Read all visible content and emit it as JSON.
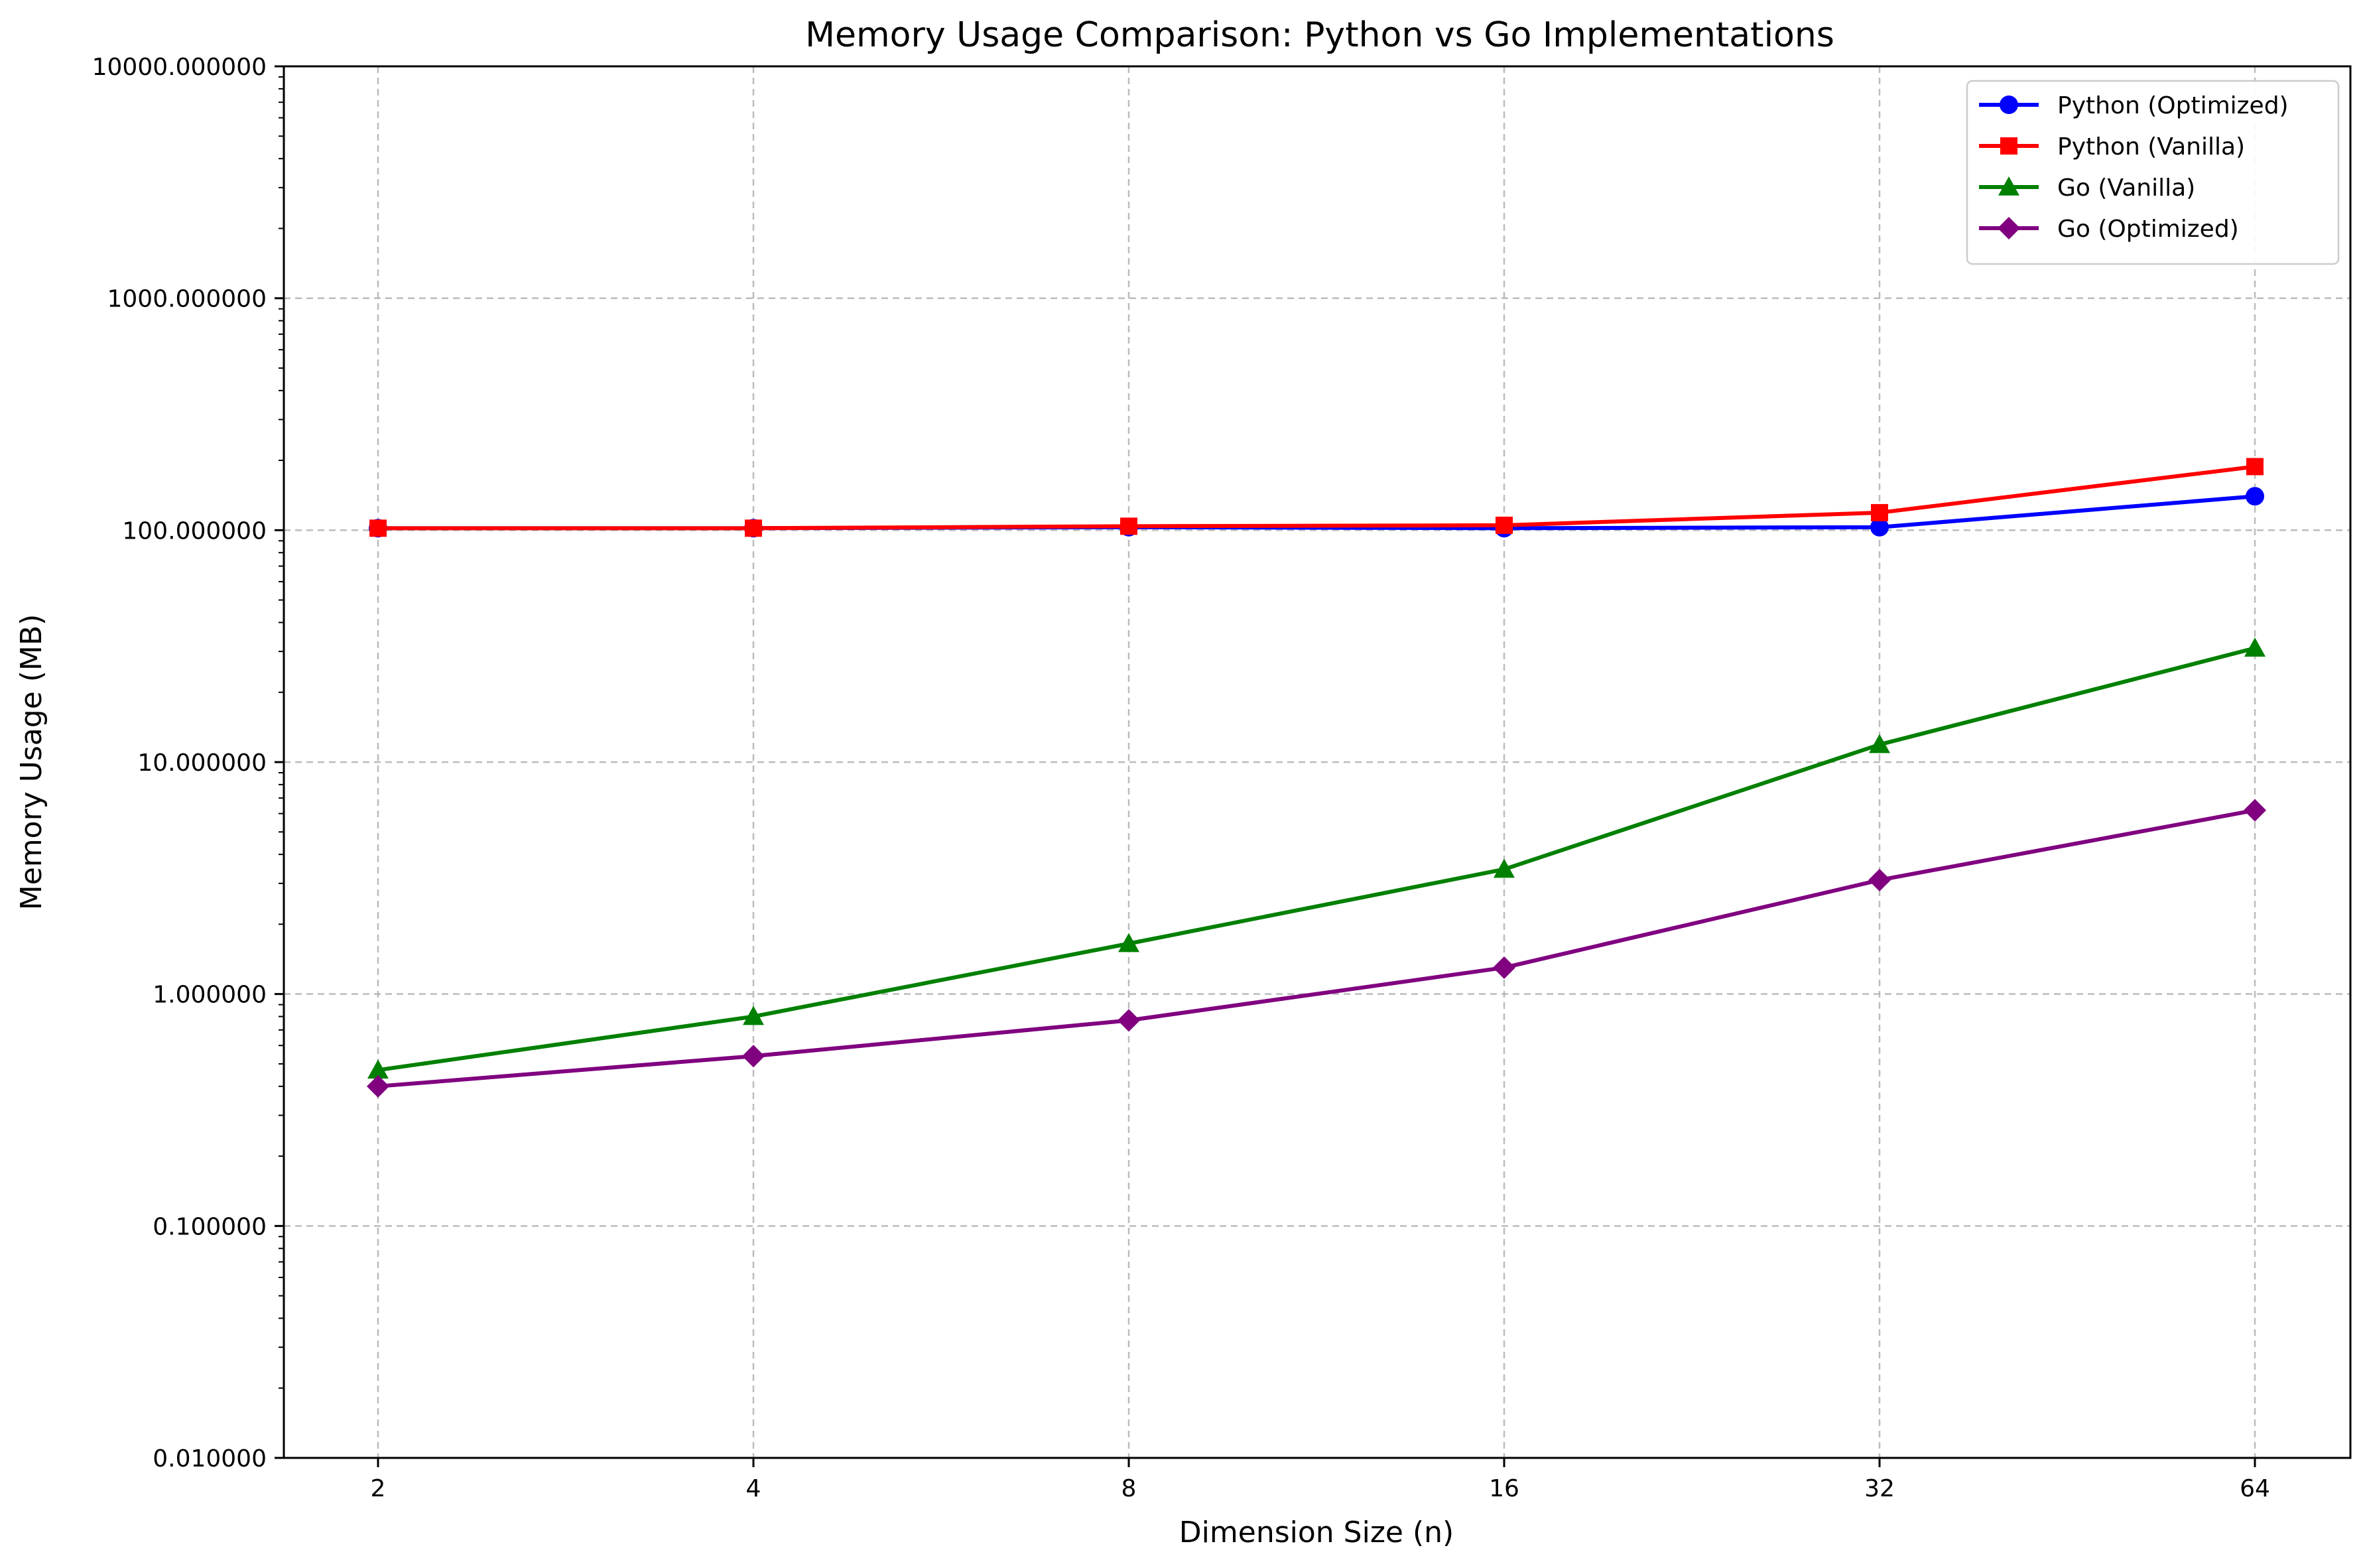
{
  "chart_data": {
    "type": "line",
    "title": "Memory Usage Comparison: Python vs Go Implementations",
    "xlabel": "Dimension Size (n)",
    "ylabel": "Memory Usage (MB)",
    "x_scale": "log2",
    "y_scale": "log",
    "x": [
      2,
      4,
      8,
      16,
      32,
      64
    ],
    "x_tick_labels": [
      "2",
      "4",
      "8",
      "16",
      "32",
      "64"
    ],
    "ylim": [
      0.01,
      10000
    ],
    "y_ticks": [
      0.01,
      0.1,
      1,
      10,
      100,
      1000,
      10000
    ],
    "y_tick_labels": [
      "0.010000",
      "0.100000",
      "1.000000",
      "10.000000",
      "100.000000",
      "1000.000000",
      "10000.000000"
    ],
    "grid": true,
    "legend_position": "top-right",
    "series": [
      {
        "name": "Python (Optimized)",
        "color": "#0000ff",
        "marker": "circle",
        "values": [
          102,
          102,
          103,
          102,
          103,
          140
        ]
      },
      {
        "name": "Python (Vanilla)",
        "color": "#ff0000",
        "marker": "square",
        "values": [
          102,
          102,
          104,
          105,
          119,
          188
        ]
      },
      {
        "name": "Go (Vanilla)",
        "color": "#008000",
        "marker": "triangle",
        "values": [
          0.47,
          0.8,
          1.65,
          3.45,
          11.9,
          31
        ]
      },
      {
        "name": "Go (Optimized)",
        "color": "#800080",
        "marker": "diamond",
        "values": [
          0.4,
          0.54,
          0.77,
          1.3,
          3.1,
          6.2
        ]
      }
    ]
  }
}
